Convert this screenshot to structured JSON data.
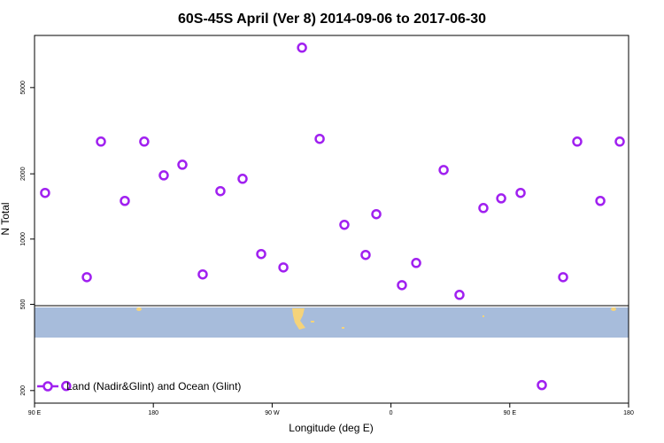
{
  "chart_data": {
    "type": "scatter",
    "title": "60S-45S April (Ver 8)   2014-09-06 to 2017-06-30",
    "xlabel": "Longitude (deg E)",
    "ylabel": "N Total",
    "yscale": "log",
    "legend": "lower left",
    "xlim": [
      90,
      540
    ],
    "ylim": [
      175,
      8700
    ],
    "xticks": [
      {
        "value": 90,
        "label": "90 E"
      },
      {
        "value": 180,
        "label": "180"
      },
      {
        "value": 270,
        "label": "90 W"
      },
      {
        "value": 360,
        "label": "0"
      },
      {
        "value": 450,
        "label": "90 E"
      },
      {
        "value": 540,
        "label": "180"
      }
    ],
    "yticks": [
      200,
      500,
      1000,
      2000,
      5000
    ],
    "series": [
      {
        "name": "Land (Nadir&Glint) and Ocean (Glint)",
        "color": "#a020f0",
        "x": [
          98,
          114,
          129.6,
          140.3,
          158.4,
          173.1,
          187.9,
          202,
          217.4,
          230.8,
          247.6,
          261.7,
          278.5,
          292.6,
          306,
          324.7,
          340.8,
          348.9,
          368.3,
          379.1,
          399.9,
          411.9,
          430,
          443.5,
          458.2,
          474.3,
          490.4,
          501.1,
          518.6,
          533.3
        ],
        "values": [
          1633,
          210,
          667,
          2817,
          1500,
          2817,
          1968,
          2203,
          687,
          1664,
          1897,
          853,
          740,
          7640,
          2900,
          1164,
          845,
          1303,
          613,
          776,
          2084,
          553,
          1391,
          1541,
          1633,
          212,
          667,
          2817,
          1500,
          2817
        ]
      }
    ]
  }
}
